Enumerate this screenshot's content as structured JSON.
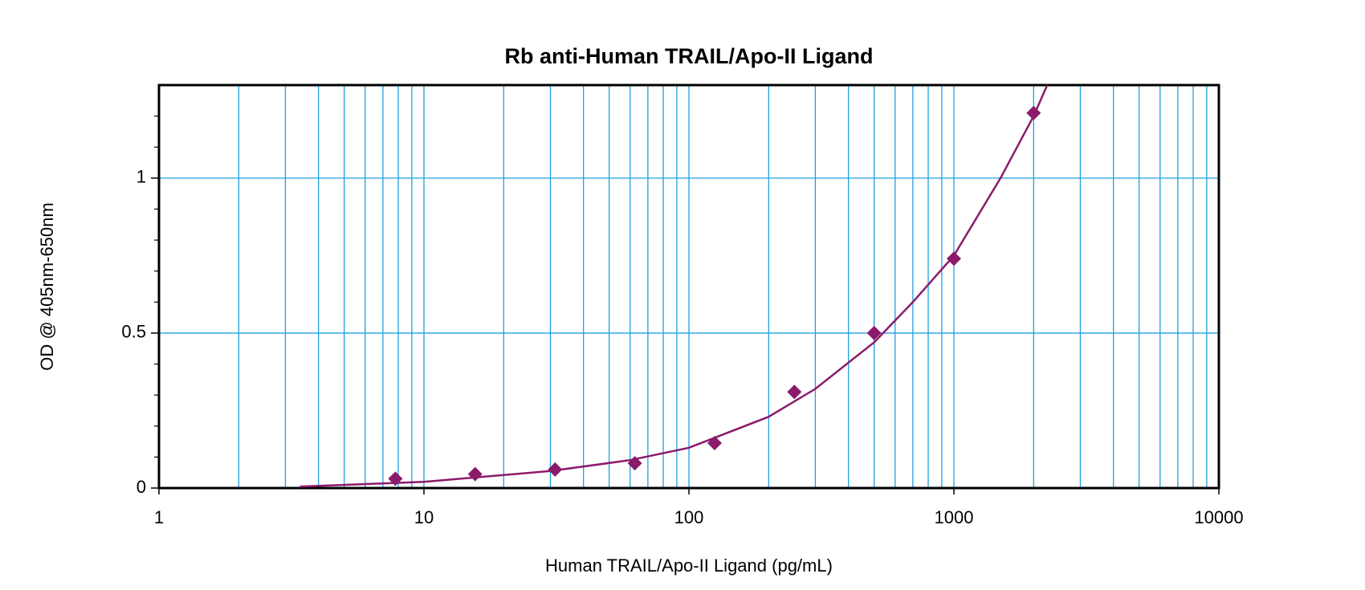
{
  "chart_data": {
    "type": "scatter",
    "title": "Rb anti-Human TRAIL/Apo-II Ligand",
    "x_label": "Human TRAIL/Apo-II Ligand (pg/mL)",
    "y_label": "OD @ 405nm-650nm",
    "x_scale": "log",
    "xlim": [
      1,
      10000
    ],
    "ylim": [
      0,
      1.3
    ],
    "xticks": [
      1,
      10,
      100,
      1000,
      10000
    ],
    "x_minor_grid": [
      2,
      3,
      4,
      5,
      6,
      7,
      8,
      9,
      20,
      30,
      40,
      50,
      60,
      70,
      80,
      90,
      200,
      300,
      400,
      500,
      600,
      700,
      800,
      900,
      2000,
      3000,
      4000,
      5000,
      6000,
      7000,
      8000,
      9000
    ],
    "yticks": [
      0,
      0.5,
      1
    ],
    "y_minor_ticks": [
      0.1,
      0.2,
      0.3,
      0.4,
      0.6,
      0.7,
      0.8,
      0.9,
      1.1,
      1.2
    ],
    "grid": true,
    "grid_color": "#1ea0e0",
    "series": [
      {
        "color": "#8b1a6b",
        "x": [
          7.8,
          15.6,
          31.25,
          62.5,
          125,
          250,
          500,
          1000,
          2000
        ],
        "values": [
          0.03,
          0.045,
          0.06,
          0.08,
          0.145,
          0.31,
          0.5,
          0.74,
          1.21
        ]
      }
    ],
    "curve": {
      "color": "#8b1a6b",
      "x": [
        3.4,
        10,
        30,
        60,
        100,
        200,
        300,
        500,
        700,
        1000,
        1500,
        2000,
        2250
      ],
      "values": [
        0.005,
        0.02,
        0.055,
        0.09,
        0.13,
        0.23,
        0.32,
        0.47,
        0.6,
        0.75,
        1.0,
        1.2,
        1.3
      ]
    }
  }
}
